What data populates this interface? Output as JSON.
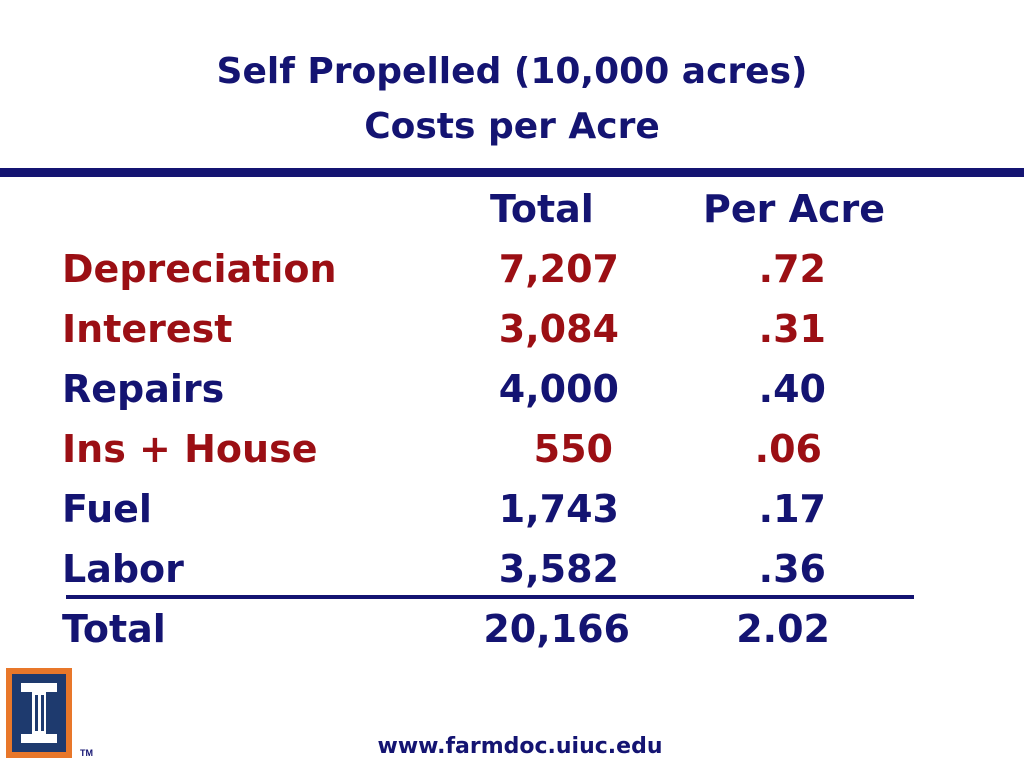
{
  "title": {
    "line1": "Self Propelled (10,000 acres)",
    "line2": "Costs per Acre"
  },
  "table": {
    "headers": {
      "total": "Total",
      "per_acre": "Per Acre"
    },
    "rows": [
      {
        "label": "Depreciation",
        "total": "7,207",
        "per_acre": ".72",
        "color": "#9b0f14"
      },
      {
        "label": "Interest",
        "total": "3,084",
        "per_acre": ".31",
        "color": "#9b0f14"
      },
      {
        "label": "Repairs",
        "total": "4,000",
        "per_acre": ".40",
        "color": "#141472"
      },
      {
        "label": "Ins + House",
        "total": "550",
        "per_acre": ".06",
        "color": "#9b0f14"
      },
      {
        "label": "Fuel",
        "total": "1,743",
        "per_acre": ".17",
        "color": "#141472"
      },
      {
        "label": "Labor",
        "total": "3,582",
        "per_acre": ".36",
        "color": "#141472"
      }
    ],
    "summary": {
      "label": "Total",
      "total": "20,166",
      "per_acre": "2.02",
      "color": "#141472"
    }
  },
  "logo": {
    "icon": "university-illinois-block-i-logo",
    "trademark": "TM"
  },
  "footer": {
    "url": "www.farmdoc.uiuc.edu"
  }
}
